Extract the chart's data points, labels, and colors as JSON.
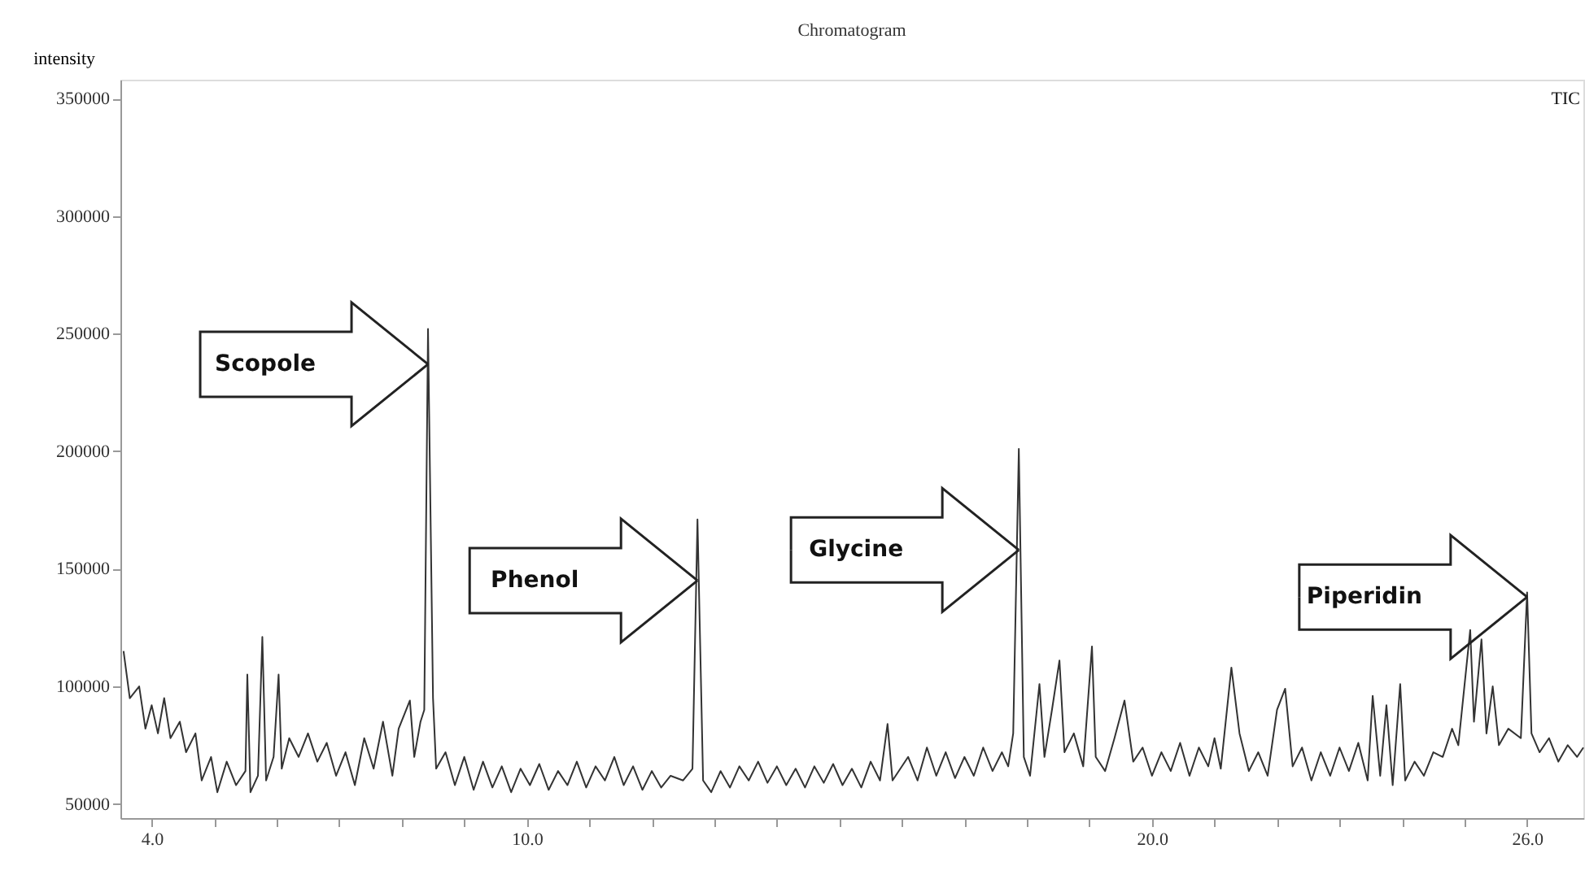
{
  "chart_data": {
    "type": "line",
    "title": "Chromatogram",
    "ylabel": "intensity",
    "xlim": [
      3.5,
      26.9
    ],
    "ylim": [
      44000,
      358000
    ],
    "xticks": [
      {
        "value": 4,
        "label": "4.0"
      },
      {
        "value": 5,
        "label": null
      },
      {
        "value": 6,
        "label": null
      },
      {
        "value": 7,
        "label": null
      },
      {
        "value": 8,
        "label": null
      },
      {
        "value": 9,
        "label": null
      },
      {
        "value": 10,
        "label": "10.0"
      },
      {
        "value": 11,
        "label": null
      },
      {
        "value": 12,
        "label": null
      },
      {
        "value": 13,
        "label": null
      },
      {
        "value": 14,
        "label": null
      },
      {
        "value": 15,
        "label": null
      },
      {
        "value": 16,
        "label": null
      },
      {
        "value": 17,
        "label": null
      },
      {
        "value": 18,
        "label": null
      },
      {
        "value": 19,
        "label": null
      },
      {
        "value": 20,
        "label": "20.0"
      },
      {
        "value": 21,
        "label": null
      },
      {
        "value": 22,
        "label": null
      },
      {
        "value": 23,
        "label": null
      },
      {
        "value": 24,
        "label": null
      },
      {
        "value": 25,
        "label": null
      },
      {
        "value": 26,
        "label": "26.0"
      }
    ],
    "yticks": [
      50000,
      100000,
      150000,
      200000,
      250000,
      300000,
      350000
    ],
    "grid": false,
    "marker": "none",
    "line_style": "solid",
    "series": [
      {
        "color": "#333333",
        "x": [
          3.55,
          3.65,
          3.8,
          3.9,
          4.0,
          4.1,
          4.2,
          4.3,
          4.45,
          4.55,
          4.7,
          4.8,
          4.95,
          5.05,
          5.2,
          5.35,
          5.5,
          5.53,
          5.58,
          5.7,
          5.77,
          5.83,
          5.95,
          6.03,
          6.08,
          6.2,
          6.35,
          6.5,
          6.65,
          6.8,
          6.95,
          7.1,
          7.25,
          7.4,
          7.55,
          7.7,
          7.85,
          7.95,
          8.13,
          8.2,
          8.3,
          8.36,
          8.42,
          8.5,
          8.55,
          8.7,
          8.85,
          9.0,
          9.15,
          9.3,
          9.45,
          9.6,
          9.75,
          9.9,
          10.05,
          10.2,
          10.35,
          10.5,
          10.65,
          10.8,
          10.95,
          11.1,
          11.25,
          11.4,
          11.55,
          11.7,
          11.85,
          12.0,
          12.15,
          12.3,
          12.5,
          12.65,
          12.73,
          12.82,
          12.95,
          13.1,
          13.25,
          13.4,
          13.55,
          13.7,
          13.85,
          14.0,
          14.15,
          14.3,
          14.45,
          14.6,
          14.75,
          14.9,
          15.05,
          15.2,
          15.35,
          15.5,
          15.65,
          15.77,
          15.85,
          16.1,
          16.25,
          16.4,
          16.55,
          16.7,
          16.85,
          17.0,
          17.15,
          17.3,
          17.45,
          17.6,
          17.7,
          17.78,
          17.87,
          17.95,
          18.05,
          18.15,
          18.2,
          18.28,
          18.4,
          18.52,
          18.6,
          18.75,
          18.9,
          19.04,
          19.1,
          19.25,
          19.4,
          19.56,
          19.7,
          19.85,
          20.0,
          20.15,
          20.3,
          20.45,
          20.6,
          20.75,
          20.9,
          21.0,
          21.1,
          21.27,
          21.4,
          21.55,
          21.7,
          21.85,
          22.0,
          22.13,
          22.25,
          22.4,
          22.55,
          22.7,
          22.85,
          23.0,
          23.15,
          23.3,
          23.45,
          23.53,
          23.65,
          23.75,
          23.85,
          23.97,
          24.05,
          24.2,
          24.35,
          24.5,
          24.65,
          24.8,
          24.9,
          25.09,
          25.15,
          25.27,
          25.35,
          25.45,
          25.55,
          25.7,
          25.9,
          26.0,
          26.07,
          26.2,
          26.35,
          26.5,
          26.65,
          26.8,
          26.9
        ],
        "values": [
          115000,
          95000,
          100000,
          82000,
          92000,
          80000,
          95000,
          78000,
          85000,
          72000,
          80000,
          60000,
          70000,
          55000,
          68000,
          58000,
          64000,
          105000,
          55000,
          62000,
          121000,
          60000,
          70000,
          105000,
          65000,
          78000,
          70000,
          80000,
          68000,
          76000,
          62000,
          72000,
          58000,
          78000,
          65000,
          85000,
          62000,
          82000,
          94000,
          70000,
          85000,
          90000,
          252000,
          95000,
          65000,
          72000,
          58000,
          70000,
          56000,
          68000,
          57000,
          66000,
          55000,
          65000,
          58000,
          67000,
          56000,
          64000,
          58000,
          68000,
          57000,
          66000,
          60000,
          70000,
          58000,
          66000,
          56000,
          64000,
          57000,
          62000,
          60000,
          65000,
          171000,
          60000,
          55000,
          64000,
          57000,
          66000,
          60000,
          68000,
          59000,
          66000,
          58000,
          65000,
          57000,
          66000,
          59000,
          67000,
          58000,
          65000,
          57000,
          68000,
          60000,
          84000,
          60000,
          70000,
          60000,
          74000,
          62000,
          72000,
          61000,
          70000,
          62000,
          74000,
          64000,
          72000,
          66000,
          80000,
          201000,
          70000,
          62000,
          88000,
          101000,
          70000,
          90000,
          111000,
          72000,
          80000,
          66000,
          117000,
          70000,
          64000,
          78000,
          94000,
          68000,
          74000,
          62000,
          72000,
          64000,
          76000,
          62000,
          74000,
          66000,
          78000,
          65000,
          108000,
          80000,
          64000,
          72000,
          62000,
          90000,
          99000,
          66000,
          74000,
          60000,
          72000,
          62000,
          74000,
          64000,
          76000,
          60000,
          96000,
          62000,
          92000,
          58000,
          101000,
          60000,
          68000,
          62000,
          72000,
          70000,
          82000,
          75000,
          124000,
          85000,
          120000,
          80000,
          100000,
          75000,
          82000,
          78000,
          140000,
          80000,
          72000,
          78000,
          68000,
          75000,
          70000,
          74000
        ]
      }
    ],
    "annotations": [
      {
        "text": "Scopole",
        "x": 8.42,
        "y": 237000
      },
      {
        "text": "Phenol",
        "x": 12.73,
        "y": 145000
      },
      {
        "text": "Glycine",
        "x": 17.87,
        "y": 158000
      },
      {
        "text": "Piperidin",
        "x": 26.0,
        "y": 138000
      },
      "TIC"
    ]
  }
}
